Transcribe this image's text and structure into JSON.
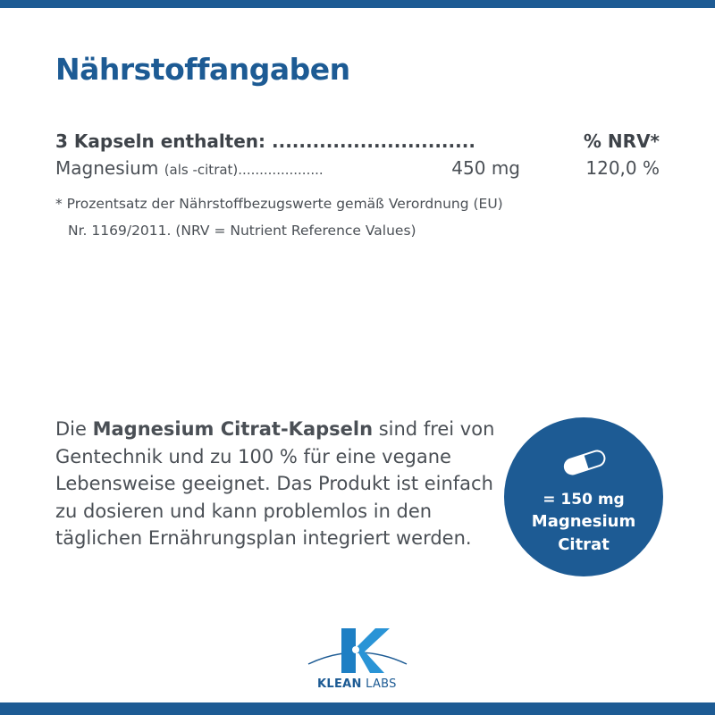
{
  "title": "Nährstoffangaben",
  "table": {
    "header_label": "3 Kapseln enthalten: ..............................",
    "header_nrv": "% NRV*",
    "rows": [
      {
        "name": "Magnesium",
        "detail": "(als -citrat)....................",
        "amount": "450 mg",
        "nrv": "120,0 %"
      }
    ],
    "footnote_line1": "* Prozentsatz der Nährstoffbezugswerte gemäß Verordnung (EU)",
    "footnote_line2": "Nr. 1169/2011. (NRV = Nutrient Reference Values)"
  },
  "description": {
    "pre": "Die ",
    "bold": "Magnesium Citrat-Kapseln",
    "post": " sind frei von Gentechnik und zu 100 % für eine vegane Lebensweise geeignet. Das Pro­dukt ist einfach zu dosieren und kann problemlos in den täglichen Ernäh­rungsplan integriert werden."
  },
  "badge": {
    "icon": "capsule-icon",
    "line1": "= 150 mg",
    "line2": "Magnesium",
    "line3": "Citrat"
  },
  "logo": {
    "brand_bold": "KLEAN",
    "brand_light": " LABS"
  },
  "colors": {
    "accent": "#1d5b94",
    "text": "#4a4f55"
  }
}
